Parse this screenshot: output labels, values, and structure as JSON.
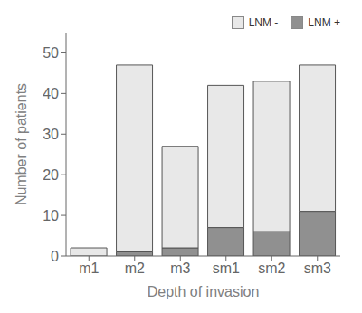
{
  "chart_data": {
    "type": "bar",
    "stacked": true,
    "categories": [
      "m1",
      "m2",
      "m3",
      "sm1",
      "sm2",
      "sm3"
    ],
    "series": [
      {
        "name": "LNM +",
        "color": "#909090",
        "values": [
          0,
          1,
          2,
          7,
          6,
          11
        ]
      },
      {
        "name": "LNM -",
        "color": "#e8e8e8",
        "values": [
          2,
          46,
          25,
          35,
          37,
          36
        ]
      }
    ],
    "xlabel": "Depth of invasion",
    "ylabel": "Number of patients",
    "ylim": [
      0,
      55
    ],
    "yticks": [
      0,
      10,
      20,
      30,
      40,
      50
    ],
    "legend": "upper right",
    "grid": false
  }
}
